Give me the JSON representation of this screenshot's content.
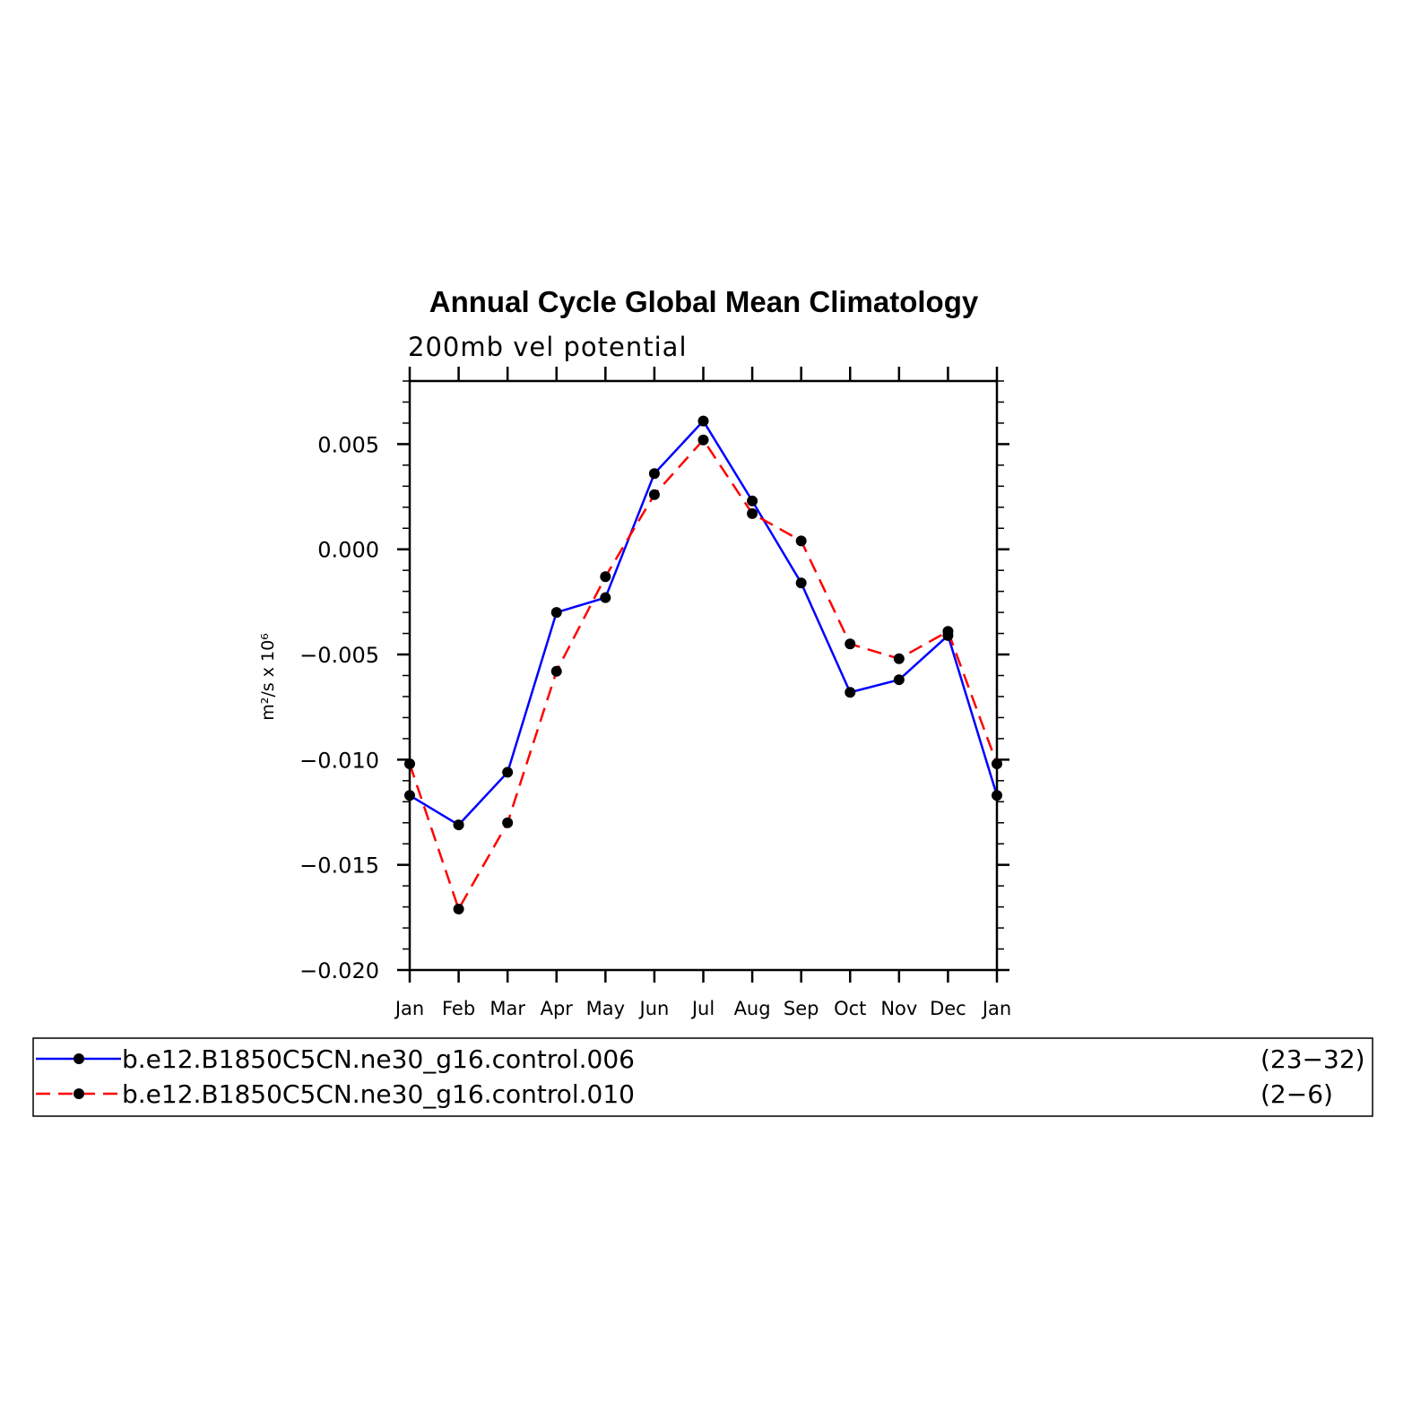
{
  "chart_data": {
    "type": "line",
    "title": "Annual Cycle Global Mean Climatology",
    "subtitle": "200mb vel potential",
    "ylabel": "m²/s x 10⁶",
    "xlabel": "",
    "categories": [
      "Jan",
      "Feb",
      "Mar",
      "Apr",
      "May",
      "Jun",
      "Jul",
      "Aug",
      "Sep",
      "Oct",
      "Nov",
      "Dec",
      "Jan"
    ],
    "ylim": [
      -0.02,
      0.008
    ],
    "yticks": [
      -0.02,
      -0.015,
      -0.01,
      -0.005,
      0.0,
      0.005
    ],
    "ytick_labels": [
      "−0.020",
      "−0.015",
      "−0.010",
      "−0.005",
      "0.000",
      "0.005"
    ],
    "grid": false,
    "series": [
      {
        "name": "b.e12.B1850C5CN.ne30_g16.control.006",
        "years": "(23−32)",
        "color": "#0000ff",
        "dash": "solid",
        "values": [
          -0.0117,
          -0.0131,
          -0.0106,
          -0.003,
          -0.0023,
          0.0036,
          0.0061,
          0.0023,
          -0.0016,
          -0.0068,
          -0.0062,
          -0.0041,
          -0.0117
        ]
      },
      {
        "name": "b.e12.B1850C5CN.ne30_g16.control.010",
        "years": "(2−6)",
        "color": "#ff0000",
        "dash": "dashed",
        "values": [
          -0.0102,
          -0.0171,
          -0.013,
          -0.0058,
          -0.0013,
          0.0026,
          0.0052,
          0.0017,
          0.0004,
          -0.0045,
          -0.0052,
          -0.0039,
          -0.0102
        ]
      }
    ],
    "legend_position": "bottom"
  }
}
